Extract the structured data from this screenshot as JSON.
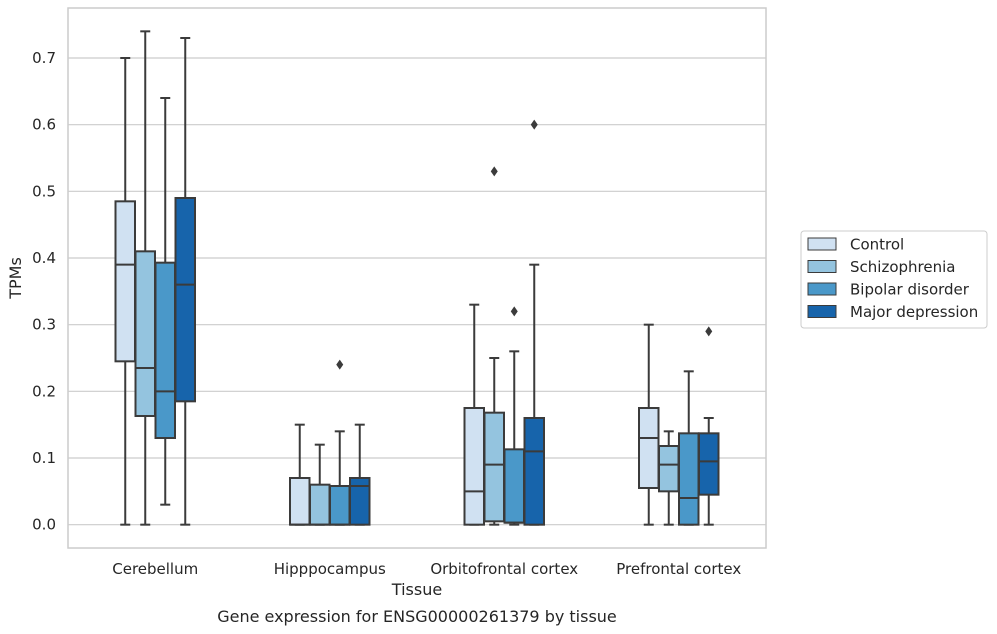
{
  "caption": "Gene expression for ENSG00000261379 by tissue",
  "chart_data": {
    "type": "box",
    "xlabel": "Tissue",
    "ylabel": "TPMs",
    "ylim": [
      -0.035,
      0.775
    ],
    "yticks": [
      0.0,
      0.1,
      0.2,
      0.3,
      0.4,
      0.5,
      0.6,
      0.7
    ],
    "ytick_labels": [
      "0.0",
      "0.1",
      "0.2",
      "0.3",
      "0.4",
      "0.5",
      "0.6",
      "0.7"
    ],
    "grid": "horizontal",
    "legend_position": "right",
    "categories": [
      "Cerebellum",
      "Hipppocampus",
      "Orbitofrontal cortex",
      "Prefrontal cortex"
    ],
    "series": [
      {
        "name": "Control",
        "color": "#d0e1f2",
        "boxes": [
          {
            "whislo": 0.0,
            "q1": 0.245,
            "median": 0.39,
            "q3": 0.485,
            "whishi": 0.7,
            "fliers": []
          },
          {
            "whislo": 0.0,
            "q1": 0.0,
            "median": 0.0,
            "q3": 0.07,
            "whishi": 0.15,
            "fliers": []
          },
          {
            "whislo": 0.0,
            "q1": 0.0,
            "median": 0.05,
            "q3": 0.175,
            "whishi": 0.33,
            "fliers": []
          },
          {
            "whislo": 0.0,
            "q1": 0.055,
            "median": 0.13,
            "q3": 0.175,
            "whishi": 0.3,
            "fliers": []
          }
        ]
      },
      {
        "name": "Schizophrenia",
        "color": "#94c4df",
        "boxes": [
          {
            "whislo": 0.0,
            "q1": 0.163,
            "median": 0.235,
            "q3": 0.41,
            "whishi": 0.74,
            "fliers": []
          },
          {
            "whislo": 0.0,
            "q1": 0.0,
            "median": 0.0,
            "q3": 0.06,
            "whishi": 0.12,
            "fliers": []
          },
          {
            "whislo": 0.0,
            "q1": 0.005,
            "median": 0.09,
            "q3": 0.168,
            "whishi": 0.25,
            "fliers": [
              0.53
            ]
          },
          {
            "whislo": 0.0,
            "q1": 0.05,
            "median": 0.09,
            "q3": 0.118,
            "whishi": 0.14,
            "fliers": []
          }
        ]
      },
      {
        "name": "Bipolar disorder",
        "color": "#4a98c9",
        "boxes": [
          {
            "whislo": 0.03,
            "q1": 0.13,
            "median": 0.2,
            "q3": 0.393,
            "whishi": 0.64,
            "fliers": []
          },
          {
            "whislo": 0.0,
            "q1": 0.0,
            "median": 0.0,
            "q3": 0.058,
            "whishi": 0.14,
            "fliers": [
              0.24
            ]
          },
          {
            "whislo": 0.0,
            "q1": 0.003,
            "median": 0.003,
            "q3": 0.113,
            "whishi": 0.26,
            "fliers": [
              0.32
            ]
          },
          {
            "whislo": 0.0,
            "q1": 0.0,
            "median": 0.04,
            "q3": 0.137,
            "whishi": 0.23,
            "fliers": []
          }
        ]
      },
      {
        "name": "Major depression",
        "color": "#1764ab",
        "boxes": [
          {
            "whislo": 0.0,
            "q1": 0.185,
            "median": 0.36,
            "q3": 0.49,
            "whishi": 0.73,
            "fliers": []
          },
          {
            "whislo": 0.0,
            "q1": 0.0,
            "median": 0.058,
            "q3": 0.07,
            "whishi": 0.15,
            "fliers": []
          },
          {
            "whislo": 0.0,
            "q1": 0.0,
            "median": 0.11,
            "q3": 0.16,
            "whishi": 0.39,
            "fliers": [
              0.6
            ]
          },
          {
            "whislo": 0.0,
            "q1": 0.045,
            "median": 0.095,
            "q3": 0.137,
            "whishi": 0.16,
            "fliers": [
              0.29
            ]
          }
        ]
      }
    ]
  }
}
